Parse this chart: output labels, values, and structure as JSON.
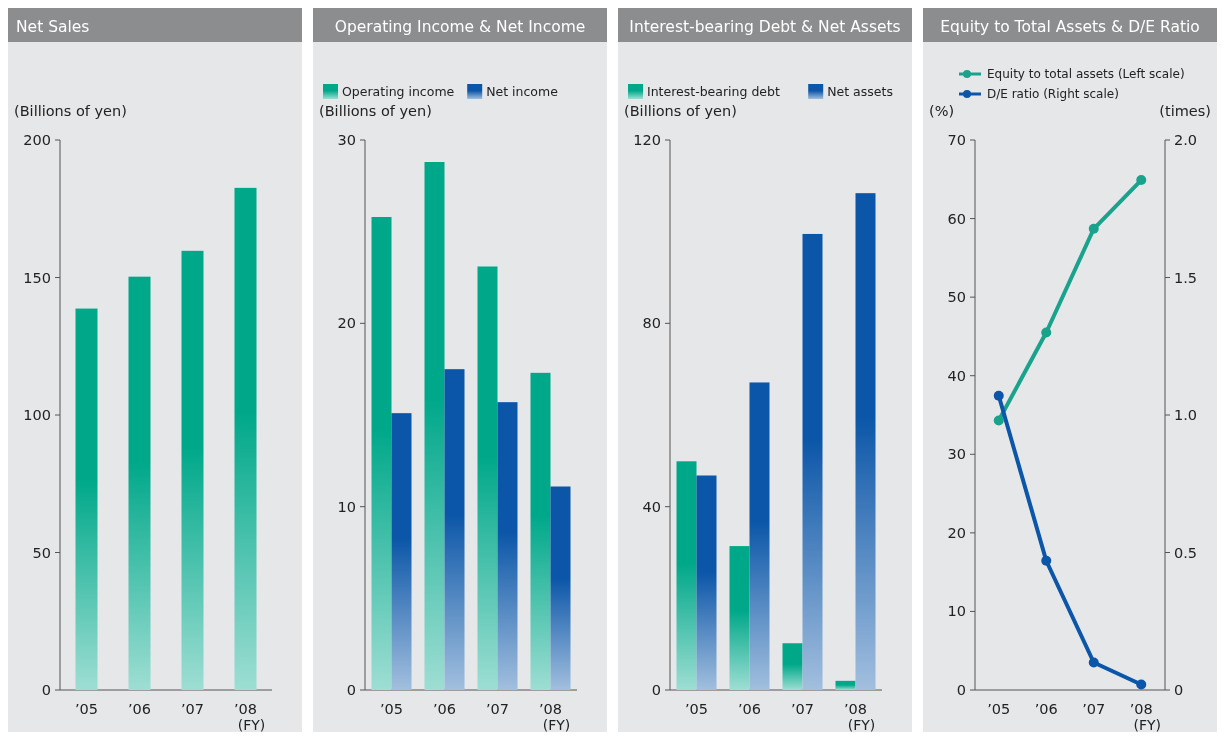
{
  "chart_data": [
    {
      "type": "bar",
      "title": "Net Sales",
      "ylabel": "(Billions of yen)",
      "xlabel": "(FY)",
      "categories": [
        "’05",
        "’06",
        "’07",
        "’08"
      ],
      "series": [
        {
          "color": "#00a88a",
          "values": [
            138.7,
            150.3,
            159.7,
            182.6
          ]
        }
      ],
      "ylim": [
        0,
        200
      ],
      "yticks": [
        0,
        50,
        100,
        150,
        200
      ]
    },
    {
      "type": "bar",
      "title": "Operating Income & Net Income",
      "ylabel": "(Billions of yen)",
      "xlabel": "(FY)",
      "categories": [
        "’05",
        "’06",
        "’07",
        "’08"
      ],
      "legend": "top left",
      "series": [
        {
          "name": "Operating income",
          "color": "#00a88a",
          "values": [
            25.8,
            28.8,
            23.1,
            17.3
          ]
        },
        {
          "name": "Net income",
          "color": "#0b56a8",
          "values": [
            15.1,
            17.5,
            15.7,
            11.1
          ]
        }
      ],
      "ylim": [
        0,
        30
      ],
      "yticks": [
        0,
        10,
        20,
        30
      ]
    },
    {
      "type": "bar",
      "title": "Interest-bearing Debt & Net Assets",
      "ylabel": "(Billions of yen)",
      "xlabel": "(FY)",
      "categories": [
        "’05",
        "’06",
        "’07",
        "’08"
      ],
      "legend": "top left",
      "series": [
        {
          "name": "Interest-bearing debt",
          "color": "#00a88a",
          "values": [
            49.9,
            31.4,
            10.2,
            2.0
          ]
        },
        {
          "name": "Net assets",
          "color": "#0b56a8",
          "values": [
            46.8,
            67.1,
            99.5,
            108.4
          ]
        }
      ],
      "ylim": [
        0,
        120
      ],
      "yticks": [
        0,
        40,
        80,
        120
      ]
    },
    {
      "type": "line",
      "title": "Equity to Total Assets & D/E Ratio",
      "ylabel": "(%)",
      "y2label": "(times)",
      "xlabel": "(FY)",
      "categories": [
        "’05",
        "’06",
        "’07",
        "’08"
      ],
      "legend": "top left",
      "marker": "circle",
      "series": [
        {
          "name": "Equity to total assets (Left scale)",
          "color": "#1aa38c",
          "values": [
            34.3,
            45.5,
            58.7,
            64.9
          ]
        },
        {
          "name": "D/E ratio (Right scale)",
          "color": "#0b56a8",
          "axis": "y2",
          "values": [
            1.07,
            0.47,
            0.1,
            0.02
          ]
        }
      ],
      "ylim": [
        0,
        70
      ],
      "yticks": [
        0,
        10,
        20,
        30,
        40,
        50,
        60,
        70
      ],
      "y2lim": [
        0,
        2.0
      ],
      "y2ticks": [
        0,
        {
          "value": 0.5,
          "label": "0.5"
        },
        {
          "value": 1.0,
          "label": "1.0"
        },
        {
          "value": 1.5,
          "label": "1.5"
        },
        {
          "value": 2.0,
          "label": "2.0"
        }
      ]
    }
  ]
}
